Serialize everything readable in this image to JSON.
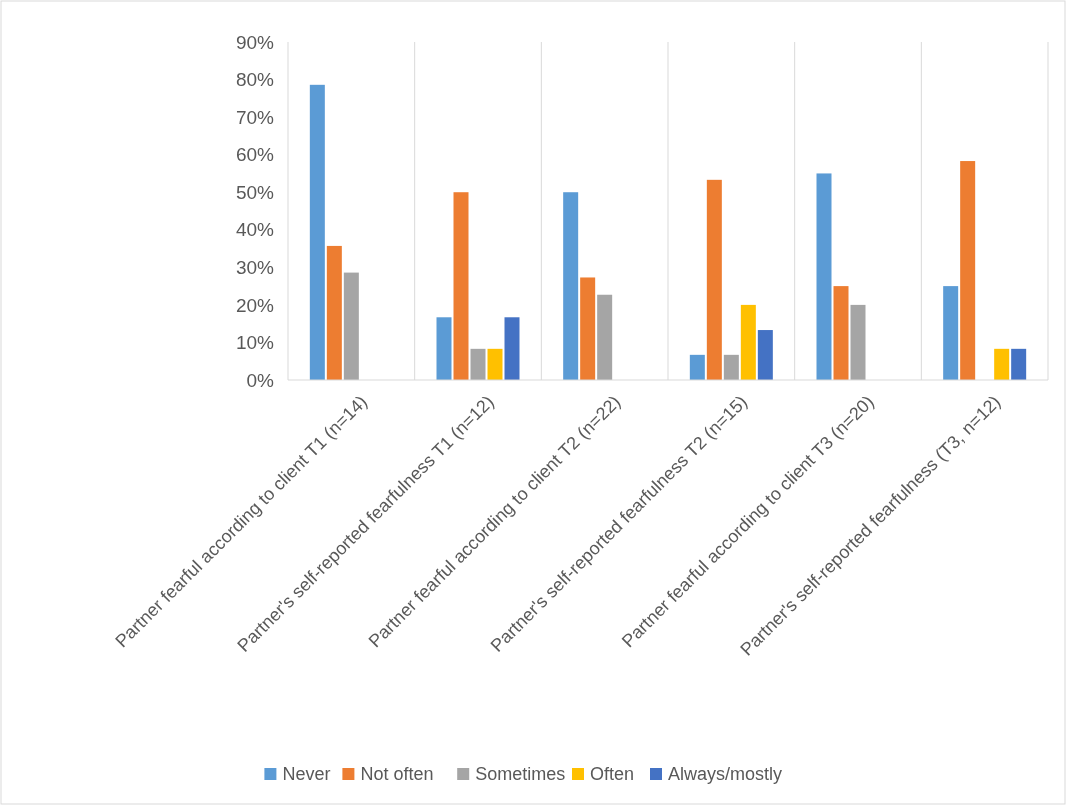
{
  "chart_data": {
    "type": "bar",
    "categories": [
      "Partner fearful according to client T1 (n=14)",
      "Partner's self-reported fearfulness T1 (n=12)",
      "Partner fearful according to client T2 (n=22)",
      "Partner's self-reported fearfulness T2 (n=15)",
      "Partner fearful according to client T3 (n=20)",
      "Partner's self-reported fearfulness (T3, n=12)"
    ],
    "series": [
      {
        "name": "Never",
        "color": "#5b9bd5",
        "values": [
          78.6,
          16.7,
          50,
          6.7,
          55,
          25
        ]
      },
      {
        "name": "Not often",
        "color": "#ed7d31",
        "values": [
          35.7,
          50,
          27.3,
          53.3,
          25,
          58.3
        ]
      },
      {
        "name": "Sometimes",
        "color": "#a5a5a5",
        "values": [
          28.6,
          8.3,
          22.7,
          6.7,
          20,
          0
        ]
      },
      {
        "name": "Often",
        "color": "#ffc000",
        "values": [
          0,
          8.3,
          0,
          20,
          0,
          8.3
        ]
      },
      {
        "name": "Always/mostly",
        "color": "#4472c4",
        "values": [
          0,
          16.7,
          0,
          13.3,
          0,
          8.3
        ]
      }
    ],
    "ylim": [
      0,
      90
    ],
    "yticks": [
      {
        "value": 0,
        "label": "0%"
      },
      {
        "value": 10,
        "label": "10%"
      },
      {
        "value": 20,
        "label": "20%"
      },
      {
        "value": 30,
        "label": "30%"
      },
      {
        "value": 40,
        "label": "40%"
      },
      {
        "value": 50,
        "label": "50%"
      },
      {
        "value": 60,
        "label": "60%"
      },
      {
        "value": 70,
        "label": "70%"
      },
      {
        "value": 80,
        "label": "80%"
      },
      {
        "value": 90,
        "label": "90%"
      }
    ],
    "grid": "x",
    "legend": "bottom"
  }
}
